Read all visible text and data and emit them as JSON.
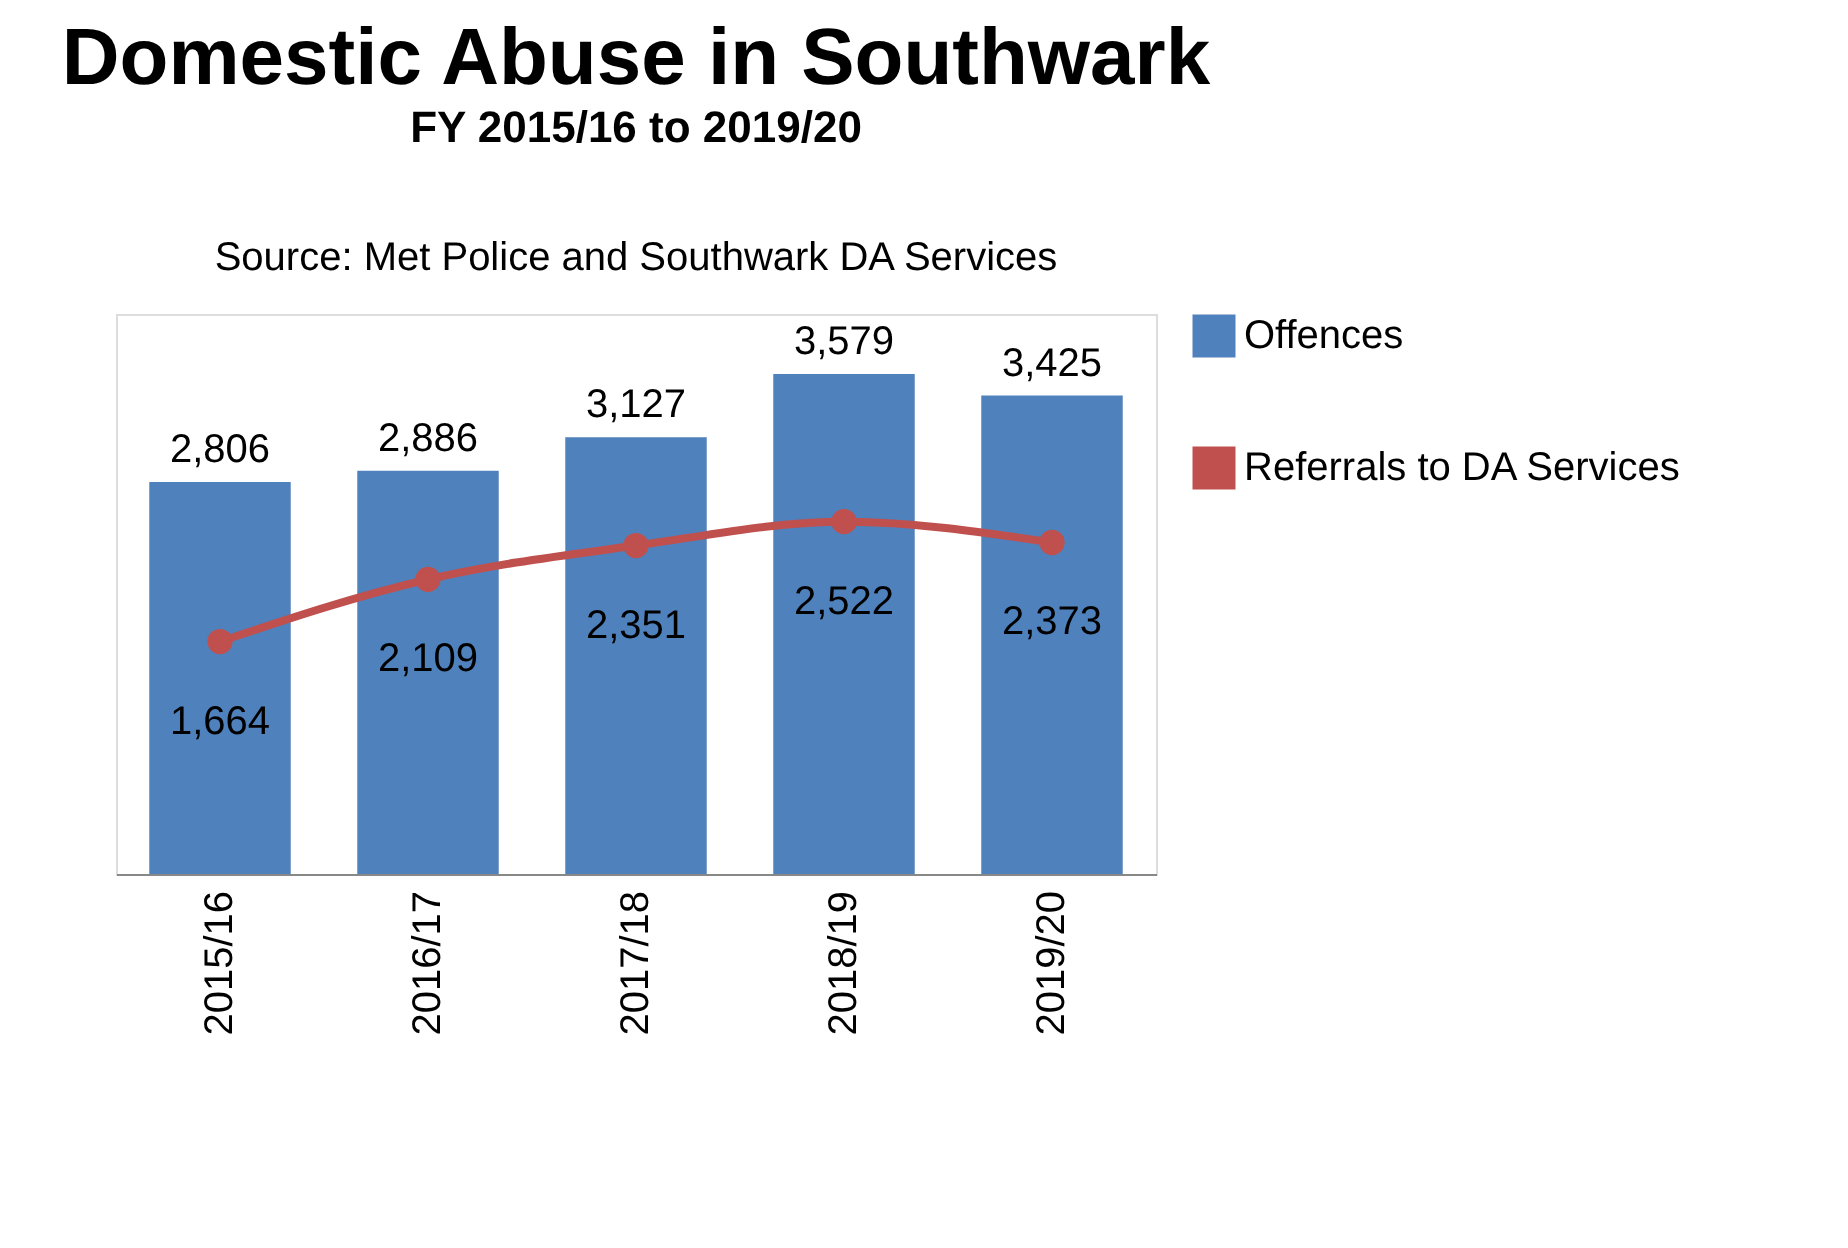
{
  "chart_data": {
    "type": "bar",
    "title": "Domestic Abuse in Southwark",
    "subtitle": "FY 2015/16 to 2019/20",
    "annotations": [
      "Source: Met Police and Southwark DA Services"
    ],
    "categories": [
      "2015/16",
      "2016/17",
      "2017/18",
      "2018/19",
      "2019/20"
    ],
    "series": [
      {
        "name": "Offences",
        "color": "#4f81bd",
        "values": [
          2806,
          2886,
          3127,
          3579,
          3425
        ],
        "value_labels": [
          "2,806",
          "2,886",
          "3,127",
          "3,579",
          "3,425"
        ]
      },
      {
        "name": "Referrals to DA Services",
        "type": "line",
        "color": "#c0504d",
        "marker": "circle",
        "values": [
          1664,
          2109,
          2351,
          2522,
          2373
        ],
        "value_labels": [
          "1,664",
          "2,109",
          "2,351",
          "2,522",
          "2,373"
        ]
      }
    ],
    "legend": "right",
    "grid": false
  }
}
